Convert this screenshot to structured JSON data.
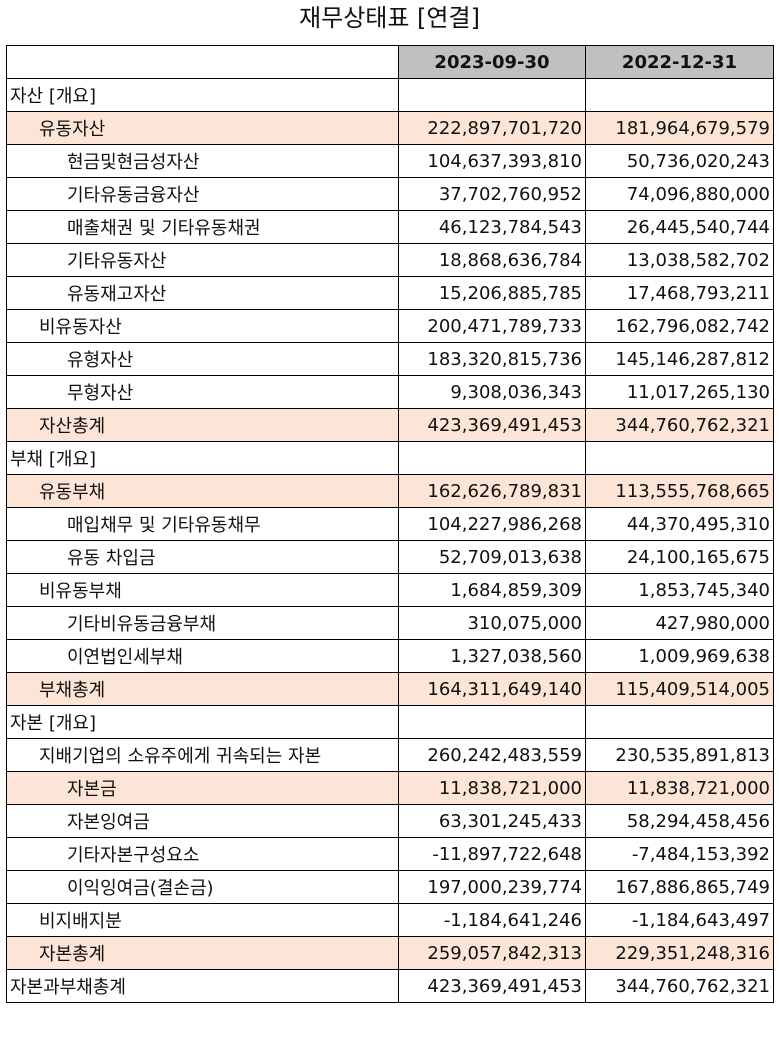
{
  "title": "재무상태표 [연결]",
  "table": {
    "columns": [
      "",
      "2023-09-30",
      "2022-12-31"
    ],
    "highlight_color": "#fce4d6",
    "header_color": "#c0c0c0",
    "rows": [
      {
        "label": "자산 [개요]",
        "level": 0,
        "highlight": false,
        "v1": "",
        "v2": ""
      },
      {
        "label": "유동자산",
        "level": 1,
        "highlight": true,
        "v1": "222,897,701,720",
        "v2": "181,964,679,579"
      },
      {
        "label": "현금및현금성자산",
        "level": 2,
        "highlight": false,
        "v1": "104,637,393,810",
        "v2": "50,736,020,243"
      },
      {
        "label": "기타유동금융자산",
        "level": 2,
        "highlight": false,
        "v1": "37,702,760,952",
        "v2": "74,096,880,000"
      },
      {
        "label": "매출채권 및 기타유동채권",
        "level": 2,
        "highlight": false,
        "v1": "46,123,784,543",
        "v2": "26,445,540,744"
      },
      {
        "label": "기타유동자산",
        "level": 2,
        "highlight": false,
        "v1": "18,868,636,784",
        "v2": "13,038,582,702"
      },
      {
        "label": "유동재고자산",
        "level": 2,
        "highlight": false,
        "v1": "15,206,885,785",
        "v2": "17,468,793,211"
      },
      {
        "label": "비유동자산",
        "level": 1,
        "highlight": false,
        "v1": "200,471,789,733",
        "v2": "162,796,082,742"
      },
      {
        "label": "유형자산",
        "level": 2,
        "highlight": false,
        "v1": "183,320,815,736",
        "v2": "145,146,287,812"
      },
      {
        "label": "무형자산",
        "level": 2,
        "highlight": false,
        "v1": "9,308,036,343",
        "v2": "11,017,265,130"
      },
      {
        "label": "자산총계",
        "level": 1,
        "highlight": true,
        "v1": "423,369,491,453",
        "v2": "344,760,762,321"
      },
      {
        "label": "부채 [개요]",
        "level": 0,
        "highlight": false,
        "v1": "",
        "v2": ""
      },
      {
        "label": "유동부채",
        "level": 1,
        "highlight": true,
        "v1": "162,626,789,831",
        "v2": "113,555,768,665"
      },
      {
        "label": "매입채무 및 기타유동채무",
        "level": 2,
        "highlight": false,
        "v1": "104,227,986,268",
        "v2": "44,370,495,310"
      },
      {
        "label": "유동 차입금",
        "level": 2,
        "highlight": false,
        "v1": "52,709,013,638",
        "v2": "24,100,165,675"
      },
      {
        "label": "비유동부채",
        "level": 1,
        "highlight": false,
        "v1": "1,684,859,309",
        "v2": "1,853,745,340"
      },
      {
        "label": "기타비유동금융부채",
        "level": 2,
        "highlight": false,
        "v1": "310,075,000",
        "v2": "427,980,000"
      },
      {
        "label": "이연법인세부채",
        "level": 2,
        "highlight": false,
        "v1": "1,327,038,560",
        "v2": "1,009,969,638"
      },
      {
        "label": "부채총계",
        "level": 1,
        "highlight": true,
        "v1": "164,311,649,140",
        "v2": "115,409,514,005"
      },
      {
        "label": "자본 [개요]",
        "level": 0,
        "highlight": false,
        "v1": "",
        "v2": ""
      },
      {
        "label": "지배기업의 소유주에게 귀속되는 자본",
        "level": 1,
        "highlight": false,
        "v1": "260,242,483,559",
        "v2": "230,535,891,813"
      },
      {
        "label": "자본금",
        "level": 2,
        "highlight": true,
        "v1": "11,838,721,000",
        "v2": "11,838,721,000"
      },
      {
        "label": "자본잉여금",
        "level": 2,
        "highlight": false,
        "v1": "63,301,245,433",
        "v2": "58,294,458,456"
      },
      {
        "label": "기타자본구성요소",
        "level": 2,
        "highlight": false,
        "v1": "-11,897,722,648",
        "v2": "-7,484,153,392"
      },
      {
        "label": "이익잉여금(결손금)",
        "level": 2,
        "highlight": false,
        "v1": "197,000,239,774",
        "v2": "167,886,865,749"
      },
      {
        "label": "비지배지분",
        "level": 1,
        "highlight": false,
        "v1": "-1,184,641,246",
        "v2": "-1,184,643,497"
      },
      {
        "label": "자본총계",
        "level": 1,
        "highlight": true,
        "v1": "259,057,842,313",
        "v2": "229,351,248,316"
      },
      {
        "label": "자본과부채총계",
        "level": 0,
        "highlight": false,
        "v1": "423,369,491,453",
        "v2": "344,760,762,321"
      }
    ]
  }
}
